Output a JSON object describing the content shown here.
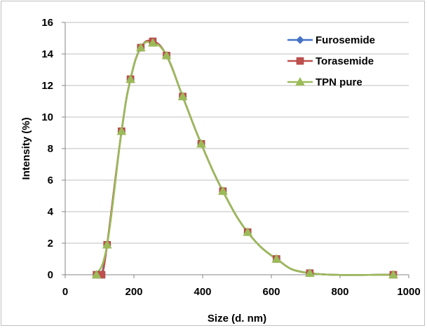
{
  "chart_data": {
    "type": "line",
    "xlabel": "Size (d. nm)",
    "ylabel": "Intensity (%)",
    "xlim": [
      0,
      1000
    ],
    "ylim": [
      0,
      16
    ],
    "x_ticks": [
      "0",
      "200",
      "400",
      "600",
      "800",
      "1000"
    ],
    "y_ticks": [
      "0",
      "2",
      "4",
      "6",
      "8",
      "10",
      "12",
      "14",
      "16"
    ],
    "grid": "horizontal",
    "legend_position": "top-right",
    "series": [
      {
        "name": "Furosemide",
        "marker": "diamond",
        "color": "#4472c4",
        "x": [
          106,
          122,
          164,
          190,
          220,
          255,
          295,
          342,
          396,
          459,
          531,
          615,
          712,
          955
        ],
        "y": [
          0,
          1.9,
          9.1,
          12.4,
          14.4,
          14.8,
          13.9,
          11.3,
          8.3,
          5.3,
          2.7,
          1.0,
          0.1,
          0
        ]
      },
      {
        "name": "Torasemide",
        "marker": "square",
        "color": "#c0504d",
        "x": [
          91,
          106,
          122,
          164,
          190,
          220,
          255,
          295,
          342,
          396,
          459,
          531,
          615,
          712,
          955
        ],
        "y": [
          0,
          0,
          1.9,
          9.1,
          12.4,
          14.4,
          14.8,
          13.9,
          11.3,
          8.3,
          5.3,
          2.7,
          1.0,
          0.1,
          0
        ]
      },
      {
        "name": "TPN pure",
        "marker": "triangle",
        "color": "#9bbb59",
        "x": [
          91,
          122,
          164,
          190,
          220,
          255,
          295,
          342,
          396,
          459,
          531,
          615,
          712,
          955
        ],
        "y": [
          0,
          1.9,
          9.1,
          12.4,
          14.4,
          14.7,
          13.9,
          11.3,
          8.3,
          5.3,
          2.7,
          1.0,
          0.1,
          0
        ]
      }
    ]
  }
}
